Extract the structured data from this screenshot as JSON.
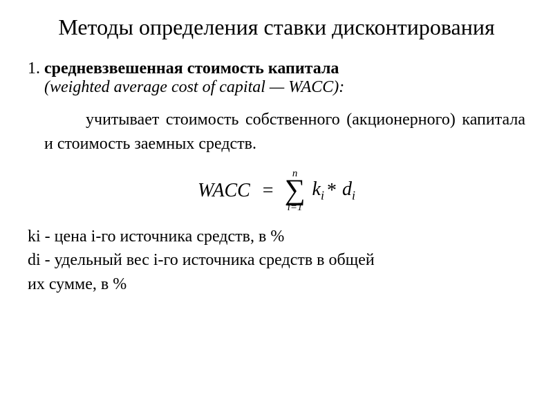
{
  "title": "Методы определения ставки дисконтирования",
  "item": {
    "number": "1. ",
    "heading": "средневзвешенная стоимость капитала",
    "subtitle": "(weighted average cost of capital — WACC):"
  },
  "description": "учитывает стоимость собственного (акционерного) капитала и стоимость заемных средств.",
  "formula": {
    "lhs": "WACC",
    "eq": "=",
    "sigma_top": "n",
    "sigma_symbol": "∑",
    "sigma_bottom": "i=1",
    "term_k": "k",
    "term_k_sub": "i",
    "star": "*",
    "term_d": "d",
    "term_d_sub": "i"
  },
  "definitions": {
    "ki": "ki - цена i-го источника средств, в %",
    "di_line1": "di - удельный вес i-го источника средств в общей",
    "di_line2": "их сумме, в %"
  }
}
